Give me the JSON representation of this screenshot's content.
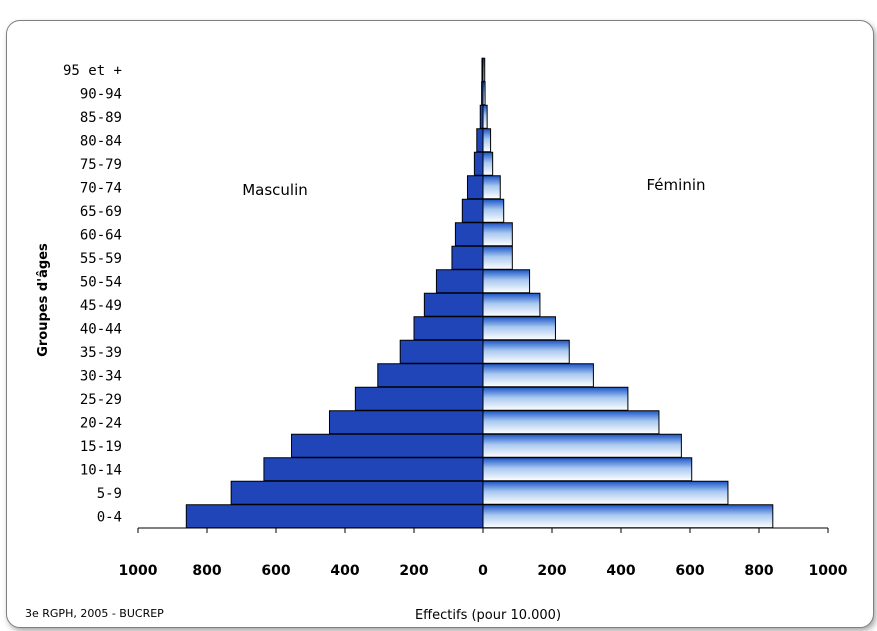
{
  "chart_data": {
    "type": "bar",
    "orientation": "horizontal",
    "style": "population-pyramid",
    "categories": [
      "0-4",
      "5-9",
      "10-14",
      "15-19",
      "20-24",
      "25-29",
      "30-34",
      "35-39",
      "40-44",
      "45-49",
      "50-54",
      "55-59",
      "60-64",
      "65-69",
      "70-74",
      "75-79",
      "80-84",
      "85-89",
      "90-94",
      "95 et +"
    ],
    "series": [
      {
        "name": "Masculin",
        "side": "left",
        "color": "#1f45b8",
        "values": [
          860,
          730,
          635,
          555,
          445,
          370,
          305,
          240,
          200,
          170,
          135,
          90,
          80,
          60,
          45,
          25,
          18,
          8,
          4,
          3
        ]
      },
      {
        "name": "Féminin",
        "side": "right",
        "color_gradient": [
          "#1a55c8",
          "#ffffff"
        ],
        "values": [
          840,
          710,
          605,
          575,
          510,
          420,
          320,
          250,
          210,
          165,
          135,
          85,
          85,
          60,
          50,
          28,
          22,
          12,
          6,
          5
        ]
      }
    ],
    "xlim": [
      -1000,
      1000
    ],
    "xticks": [
      -1000,
      -800,
      -600,
      -400,
      -200,
      0,
      200,
      400,
      600,
      800,
      1000
    ],
    "xtick_labels": [
      "1000",
      "800",
      "600",
      "400",
      "200",
      "0",
      "200",
      "400",
      "600",
      "800",
      "1000"
    ],
    "xlabel": "Effectifs  (pour 10.000)",
    "ylabel": "Groupes d'âges",
    "source_note": "3e RGPH, 2005 - BUCREP",
    "grid": false,
    "legend": "none"
  }
}
